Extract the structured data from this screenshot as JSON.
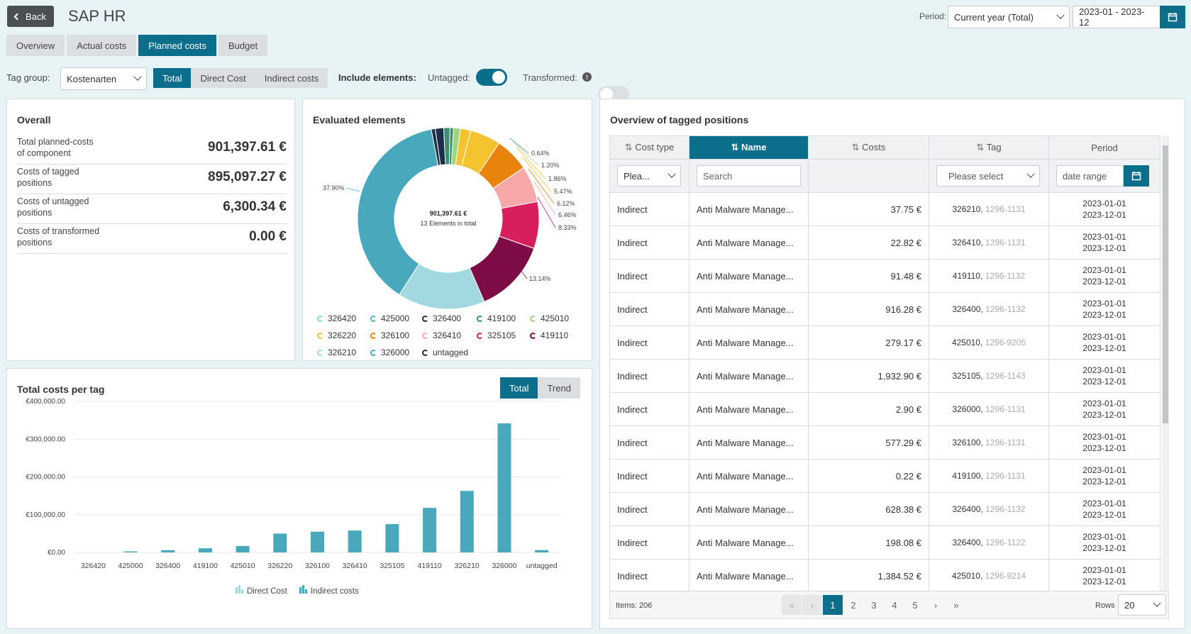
{
  "header": {
    "back_label": "Back",
    "title": "SAP HR",
    "period_label": "Period:",
    "period_select": "Current year (Total)",
    "date_range": "2023-01 - 2023-12"
  },
  "tabs": [
    {
      "label": "Overview",
      "active": false
    },
    {
      "label": "Actual costs",
      "active": false
    },
    {
      "label": "Planned costs",
      "active": true
    },
    {
      "label": "Budget",
      "active": false
    }
  ],
  "filters": {
    "tag_group_label": "Tag group:",
    "tag_group_value": "Kostenarten",
    "cost_segments": [
      "Total",
      "Direct Cost",
      "Indirect costs"
    ],
    "include_label": "Include elements:",
    "untagged_label": "Untagged:",
    "untagged_on": true,
    "transformed_label": "Transformed:",
    "transformed_on": false
  },
  "overall": {
    "title": "Overall",
    "rows": [
      {
        "label1": "Total planned-costs",
        "label2": "of component",
        "value": "901,397.61 €"
      },
      {
        "label1": "Costs of tagged",
        "label2": "positions",
        "value": "895,097.27 €"
      },
      {
        "label1": "Costs of untagged",
        "label2": "positions",
        "value": "6,300.34 €"
      },
      {
        "label1": "Costs of transformed",
        "label2": "positions",
        "value": "0.00 €"
      }
    ]
  },
  "evaluated": {
    "title": "Evaluated elements",
    "center_total": "901,397.61 €",
    "center_sub": "13 Elements in total",
    "slice_labels": [
      "0.64%",
      "1.20%",
      "1.86%",
      "5.47%",
      "6.12%",
      "6.46%",
      "8.33%",
      "13.14%",
      "37.90%"
    ],
    "legend": [
      {
        "label": "326420",
        "color": "#8fd3df"
      },
      {
        "label": "425000",
        "color": "#5ab4c8"
      },
      {
        "label": "326400",
        "color": "#1c2e4a"
      },
      {
        "label": "419100",
        "color": "#3a8f6e"
      },
      {
        "label": "425010",
        "color": "#9bd67a"
      },
      {
        "label": "326220",
        "color": "#f4c430"
      },
      {
        "label": "326100",
        "color": "#e8830c"
      },
      {
        "label": "326410",
        "color": "#f8a8a8"
      },
      {
        "label": "325105",
        "color": "#d81e5b"
      },
      {
        "label": "419110",
        "color": "#7d0b45"
      },
      {
        "label": "326210",
        "color": "#a2d8e0"
      },
      {
        "label": "326000",
        "color": "#4aa8bd"
      },
      {
        "label": "untagged",
        "color": "#1c2e4a"
      }
    ]
  },
  "totals_chart": {
    "title": "Total costs per tag",
    "toggle": [
      "Total",
      "Trend"
    ],
    "legend": [
      "Direct Cost",
      "Indirect costs"
    ]
  },
  "chart_data": {
    "type": "bar",
    "categories": [
      "326420",
      "425000",
      "326400",
      "419100",
      "425010",
      "326220",
      "326100",
      "326410",
      "325105",
      "419110",
      "326210",
      "326000",
      "untagged"
    ],
    "series": [
      {
        "name": "Direct Cost",
        "values": [
          0,
          0,
          0,
          0,
          0,
          0,
          0,
          0,
          0,
          0,
          0,
          0,
          0
        ]
      },
      {
        "name": "Indirect costs",
        "values": [
          0,
          1000,
          6000,
          11000,
          17000,
          50000,
          55000,
          58000,
          75000,
          118000,
          163000,
          342000,
          6300
        ]
      }
    ],
    "yticks": [
      "€0.00",
      "€100,000.00",
      "€200,000.00",
      "€300,000.00",
      "€400,000.00"
    ],
    "ylim": [
      0,
      400000
    ]
  },
  "donut_data": {
    "type": "pie",
    "values": [
      0.64,
      1.2,
      1.86,
      5.47,
      6.12,
      6.46,
      8.33,
      13.14,
      15.58,
      37.9,
      0.7,
      1.5,
      1.1
    ],
    "colors": [
      "#3a8f6e",
      "#9bd67a",
      "#f4c430",
      "#f4c430",
      "#e8830c",
      "#f8a8a8",
      "#d81e5b",
      "#7d0b45",
      "#a2d8e0",
      "#4aa8bd",
      "#1c2e4a",
      "#1c2e4a",
      "#3a8f6e"
    ]
  },
  "positions": {
    "title": "Overview of tagged positions",
    "columns": [
      "Cost type",
      "Name",
      "Costs",
      "Tag",
      "Period"
    ],
    "filters": {
      "cost_type": "Plea...",
      "name": "Search",
      "tag": "Please select",
      "period": "date range"
    },
    "rows": [
      {
        "type": "Indirect",
        "name": "Anti Malware Manage...",
        "cost": "37.75 €",
        "tag": "326210,",
        "tag2": "1296-1131",
        "p1": "2023-01-01",
        "p2": "2023-12-01"
      },
      {
        "type": "Indirect",
        "name": "Anti Malware Manage...",
        "cost": "22.82 €",
        "tag": "326410,",
        "tag2": "1296-1131",
        "p1": "2023-01-01",
        "p2": "2023-12-01"
      },
      {
        "type": "Indirect",
        "name": "Anti Malware Manage...",
        "cost": "91.48 €",
        "tag": "419110,",
        "tag2": "1296-1132",
        "p1": "2023-01-01",
        "p2": "2023-12-01"
      },
      {
        "type": "Indirect",
        "name": "Anti Malware Manage...",
        "cost": "916.28 €",
        "tag": "326400,",
        "tag2": "1296-1132",
        "p1": "2023-01-01",
        "p2": "2023-12-01"
      },
      {
        "type": "Indirect",
        "name": "Anti Malware Manage...",
        "cost": "279.17 €",
        "tag": "425010,",
        "tag2": "1296-9205",
        "p1": "2023-01-01",
        "p2": "2023-12-01"
      },
      {
        "type": "Indirect",
        "name": "Anti Malware Manage...",
        "cost": "1,932.90 €",
        "tag": "325105,",
        "tag2": "1296-1143",
        "p1": "2023-01-01",
        "p2": "2023-12-01"
      },
      {
        "type": "Indirect",
        "name": "Anti Malware Manage...",
        "cost": "2.90 €",
        "tag": "326000,",
        "tag2": "1296-1131",
        "p1": "2023-01-01",
        "p2": "2023-12-01"
      },
      {
        "type": "Indirect",
        "name": "Anti Malware Manage...",
        "cost": "577.29 €",
        "tag": "326100,",
        "tag2": "1296-1131",
        "p1": "2023-01-01",
        "p2": "2023-12-01"
      },
      {
        "type": "Indirect",
        "name": "Anti Malware Manage...",
        "cost": "0.22 €",
        "tag": "419100,",
        "tag2": "1296-1131",
        "p1": "2023-01-01",
        "p2": "2023-12-01"
      },
      {
        "type": "Indirect",
        "name": "Anti Malware Manage...",
        "cost": "628.38 €",
        "tag": "326400,",
        "tag2": "1296-1132",
        "p1": "2023-01-01",
        "p2": "2023-12-01"
      },
      {
        "type": "Indirect",
        "name": "Anti Malware Manage...",
        "cost": "198.08 €",
        "tag": "326400,",
        "tag2": "1296-1122",
        "p1": "2023-01-01",
        "p2": "2023-12-01"
      },
      {
        "type": "Indirect",
        "name": "Anti Malware Manage...",
        "cost": "1,384.52 €",
        "tag": "425010,",
        "tag2": "1296-9214",
        "p1": "2023-01-01",
        "p2": "2023-12-01"
      }
    ],
    "items_label": "Items: 206",
    "pages": [
      "1",
      "2",
      "3",
      "4",
      "5"
    ],
    "rows_label": "Rows",
    "rows_value": "20"
  }
}
